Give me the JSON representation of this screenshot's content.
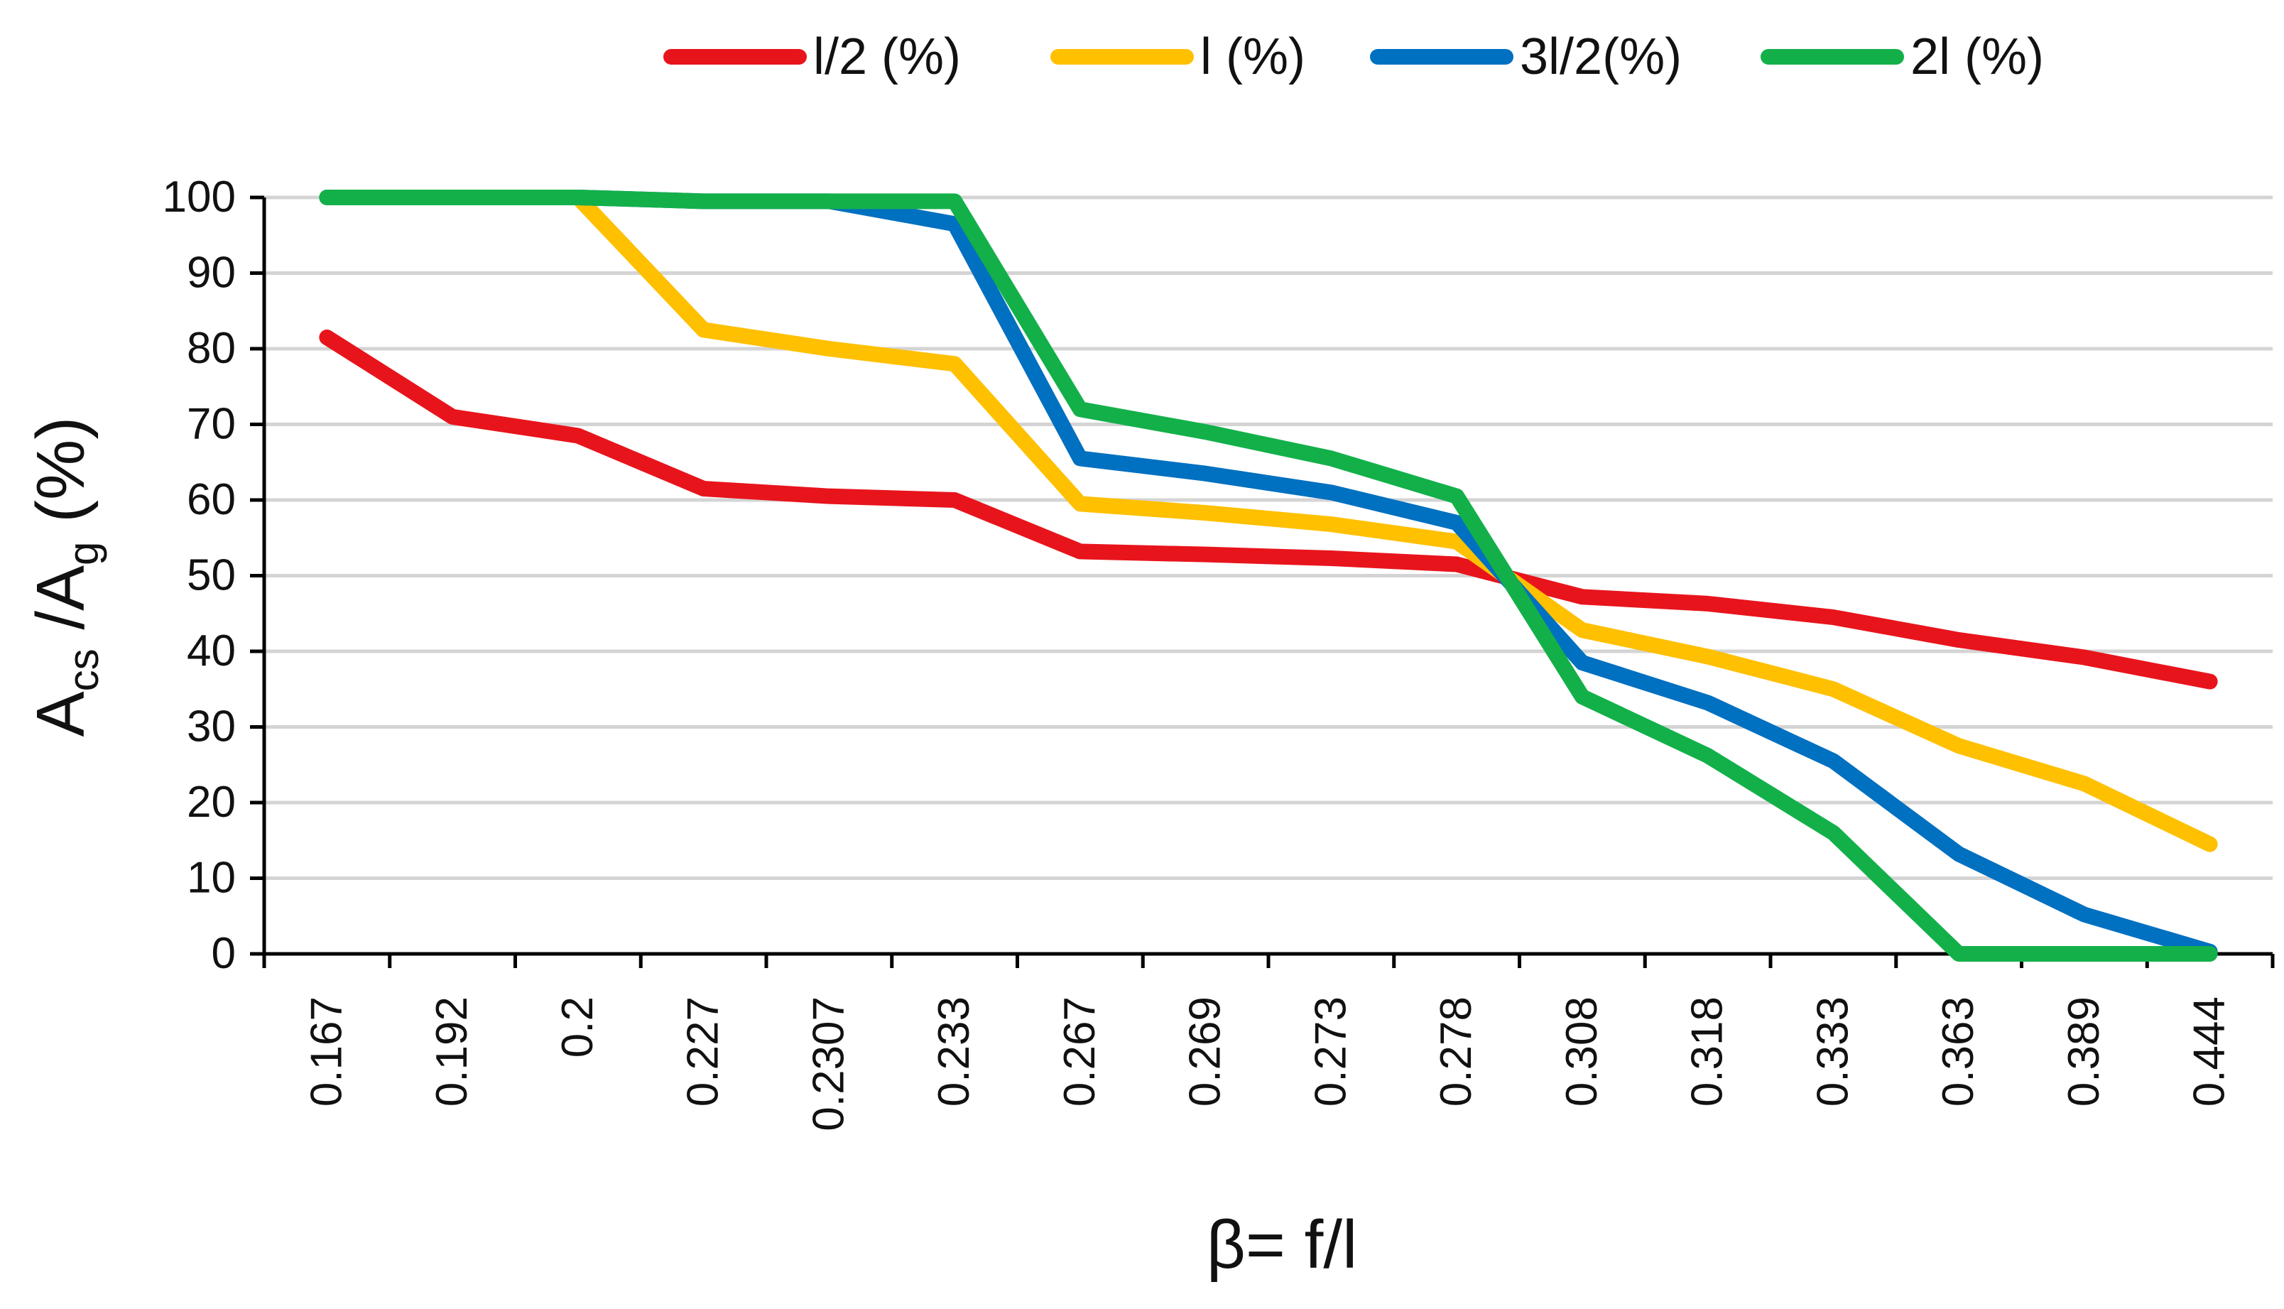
{
  "chart_data": {
    "type": "line",
    "title": "",
    "xlabel": "β= f/l",
    "ylabel": {
      "main": "A",
      "sub1": "cs",
      "mid": " /A",
      "sub2": "g",
      "tail": " (%)"
    },
    "categories": [
      "0.167",
      "0.192",
      "0.2",
      "0.227",
      "0.2307",
      "0.233",
      "0.267",
      "0.269",
      "0.273",
      "0.278",
      "0.308",
      "0.318",
      "0.333",
      "0.363",
      "0.389",
      "0.444"
    ],
    "yticks": [
      "0",
      "10",
      "20",
      "30",
      "40",
      "50",
      "60",
      "70",
      "80",
      "90",
      "100"
    ],
    "ylim": [
      0,
      100
    ],
    "grid": true,
    "legend_position": "top",
    "series": [
      {
        "name": "l/2  (%)",
        "color": "#e8141c",
        "values": [
          81.5,
          71,
          68.5,
          61.5,
          60.5,
          60,
          53.2,
          52.8,
          52.3,
          51.5,
          47.2,
          46.3,
          44.5,
          41.5,
          39.2,
          36
        ]
      },
      {
        "name": "l (%)",
        "color": "#ffc000",
        "values": [
          100,
          100,
          100,
          82.5,
          80,
          78,
          59.5,
          58.3,
          56.8,
          54.5,
          42.8,
          39.3,
          35,
          27.5,
          22.5,
          14.5
        ]
      },
      {
        "name": "3l/2(%)",
        "color": "#0070c0",
        "values": [
          100,
          100,
          100,
          99.5,
          99.5,
          96.5,
          65.5,
          63.5,
          61,
          57,
          38.5,
          33.2,
          25.5,
          13.2,
          5.2,
          0.3
        ]
      },
      {
        "name": "2l (%)",
        "color": "#13b04a",
        "values": [
          100,
          100,
          100,
          99.5,
          99.5,
          99.5,
          72,
          69,
          65.5,
          60.5,
          34,
          26.2,
          16,
          0,
          0,
          0
        ]
      }
    ]
  }
}
